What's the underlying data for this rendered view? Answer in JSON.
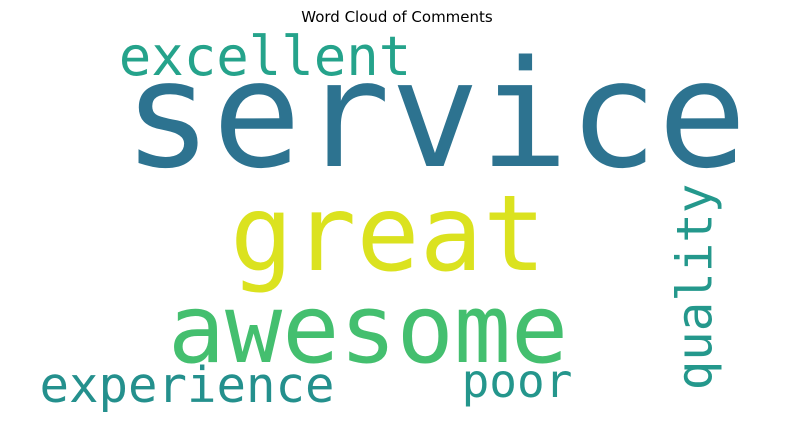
{
  "chart_data": {
    "type": "wordcloud",
    "title": "Word Cloud of Comments",
    "words": [
      {
        "text": "service",
        "weight": 1.0,
        "color": "#2d7390",
        "orientation": "horizontal"
      },
      {
        "text": "great",
        "weight": 0.72,
        "color": "#dbe21f",
        "orientation": "horizontal"
      },
      {
        "text": "awesome",
        "weight": 0.64,
        "color": "#44bf6f",
        "orientation": "horizontal"
      },
      {
        "text": "excellent",
        "weight": 0.37,
        "color": "#25a38b",
        "orientation": "horizontal"
      },
      {
        "text": "experience",
        "weight": 0.33,
        "color": "#24908d",
        "orientation": "horizontal"
      },
      {
        "text": "quality",
        "weight": 0.33,
        "color": "#24988c",
        "orientation": "vertical"
      },
      {
        "text": "poor",
        "weight": 0.3,
        "color": "#24968c",
        "orientation": "horizontal"
      }
    ]
  }
}
